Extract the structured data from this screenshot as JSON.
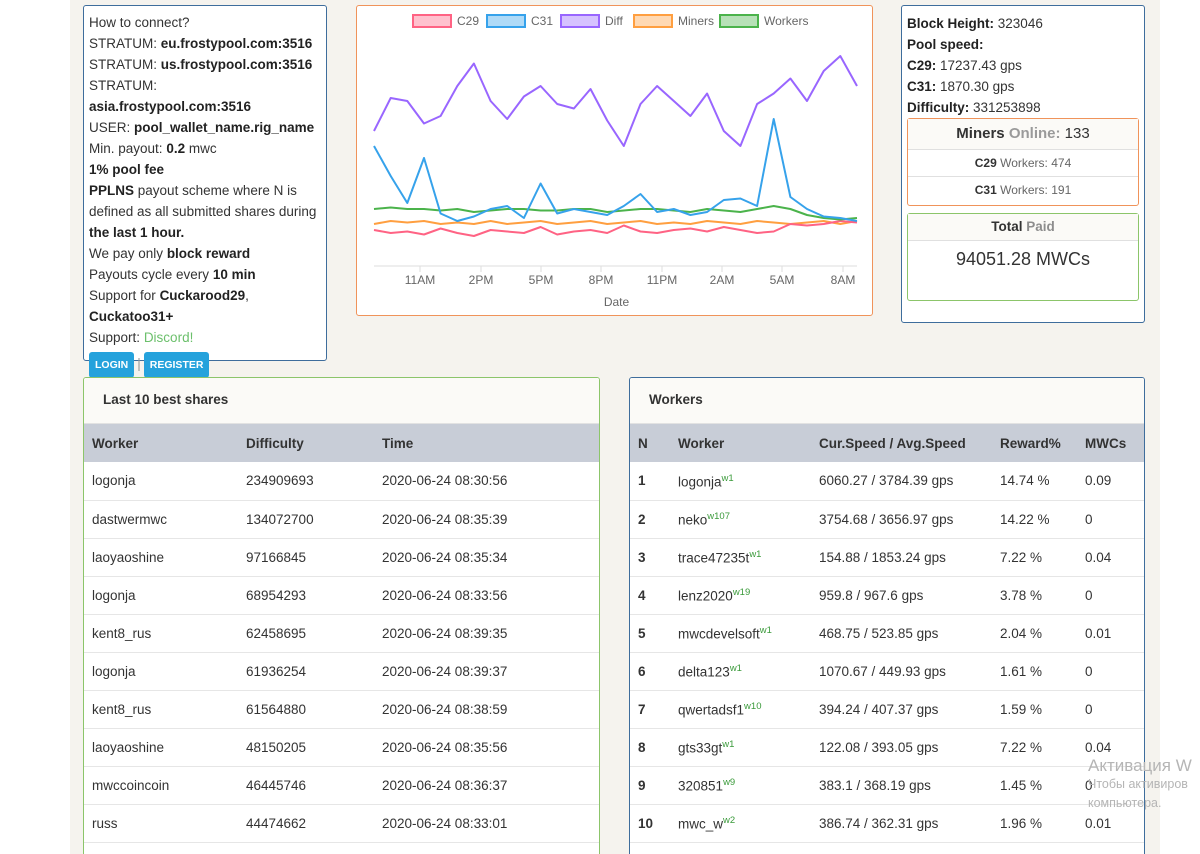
{
  "connect": {
    "how_to_connect": "How to connect?",
    "stratum_label": "STRATUM:",
    "stratums": [
      "eu.frostypool.com:3516",
      "us.frostypool.com:3516",
      "asia.frostypool.com:3516"
    ],
    "user_label": "USER:",
    "user_value": "pool_wallet_name.rig_name",
    "min_payout_label": "Min. payout:",
    "min_payout_value": "0.2",
    "min_payout_unit": "mwc",
    "pool_fee": "1% pool fee",
    "pplns": "PPLNS",
    "pplns_text": "payout scheme where N is defined as all submitted shares during",
    "last_hour": "the last 1 hour.",
    "pay_only": "We pay only",
    "block_reward": "block reward",
    "payouts_cycle": "Payouts cycle every",
    "cycle_value": "10 min",
    "support_for": "Support for",
    "algo1": "Cuckarood29",
    "algo2": "Cuckatoo31+",
    "support_label": "Support:",
    "discord": "Discord!",
    "login": "LOGIN",
    "separator": "|",
    "register": "REGISTER"
  },
  "chart_data": {
    "type": "line",
    "legend": [
      "C29",
      "C31",
      "Diff",
      "Miners",
      "Workers"
    ],
    "legend_colors": [
      "#ff6384",
      "#36a2eb",
      "#9966ff",
      "#ff9f40",
      "#4bb34b"
    ],
    "xlabel": "Date",
    "x_ticks": [
      "11AM",
      "2PM",
      "5PM",
      "8PM",
      "11PM",
      "2AM",
      "5AM",
      "8AM"
    ],
    "series": [
      {
        "name": "C29",
        "values": [
          24,
          22,
          23,
          21,
          25,
          22,
          20,
          24,
          23,
          22,
          26,
          21,
          23,
          24,
          22,
          27,
          23,
          22,
          24,
          25,
          23,
          26,
          24,
          22,
          23,
          28,
          27,
          28,
          30,
          29
        ]
      },
      {
        "name": "C31",
        "values": [
          80,
          60,
          42,
          72,
          35,
          30,
          33,
          38,
          40,
          32,
          55,
          35,
          38,
          36,
          34,
          40,
          48,
          36,
          38,
          34,
          36,
          44,
          45,
          40,
          98,
          46,
          38,
          33,
          32,
          30
        ]
      },
      {
        "name": "Diff",
        "values": [
          90,
          112,
          110,
          95,
          100,
          120,
          135,
          110,
          98,
          113,
          120,
          108,
          105,
          118,
          97,
          80,
          108,
          120,
          110,
          100,
          115,
          90,
          80,
          108,
          115,
          125,
          110,
          130,
          140,
          120
        ]
      },
      {
        "name": "Miners",
        "values": [
          28,
          30,
          29,
          30,
          28,
          29,
          28,
          30,
          28,
          29,
          30,
          28,
          29,
          30,
          28,
          29,
          30,
          28,
          29,
          28,
          30,
          29,
          28,
          30,
          29,
          28,
          29,
          30,
          28,
          30
        ]
      },
      {
        "name": "Workers",
        "values": [
          38,
          39,
          38,
          38,
          37,
          38,
          36,
          37,
          38,
          38,
          37,
          37,
          38,
          38,
          36,
          37,
          38,
          38,
          37,
          36,
          38,
          37,
          36,
          38,
          40,
          38,
          34,
          32,
          31,
          32
        ]
      }
    ]
  },
  "stats": {
    "block_height_label": "Block Height:",
    "block_height": "323046",
    "pool_speed_label": "Pool speed:",
    "c29_label": "C29:",
    "c29_speed": "17237.43 gps",
    "c31_label": "C31:",
    "c31_speed": "1870.30 gps",
    "difficulty_label": "Difficulty:",
    "difficulty": "331253898",
    "miners_label": "Miners",
    "online_label": "Online:",
    "miners_online": "133",
    "c29_workers_label": "C29",
    "c29_workers_text": "Workers:",
    "c29_workers": "474",
    "c31_workers_label": "C31",
    "c31_workers_text": "Workers:",
    "c31_workers": "191",
    "total_label": "Total",
    "paid_label": "Paid",
    "total_paid": "94051.28 MWCs"
  },
  "shares": {
    "title": "Last 10 best shares",
    "columns": [
      "Worker",
      "Difficulty",
      "Time"
    ],
    "rows": [
      [
        "logonja",
        "234909693",
        "2020-06-24 08:30:56"
      ],
      [
        "dastwermwc",
        "134072700",
        "2020-06-24 08:35:39"
      ],
      [
        "laoyaoshine",
        "97166845",
        "2020-06-24 08:35:34"
      ],
      [
        "logonja",
        "68954293",
        "2020-06-24 08:33:56"
      ],
      [
        "kent8_rus",
        "62458695",
        "2020-06-24 08:39:35"
      ],
      [
        "logonja",
        "61936254",
        "2020-06-24 08:39:37"
      ],
      [
        "kent8_rus",
        "61564880",
        "2020-06-24 08:38:59"
      ],
      [
        "laoyaoshine",
        "48150205",
        "2020-06-24 08:35:56"
      ],
      [
        "mwccoincoin",
        "46445746",
        "2020-06-24 08:36:37"
      ],
      [
        "russ",
        "44474662",
        "2020-06-24 08:33:01"
      ]
    ]
  },
  "workers": {
    "title": "Workers",
    "columns": [
      "N",
      "Worker",
      "Cur.Speed / Avg.Speed",
      "Reward%",
      "MWCs"
    ],
    "rows": [
      {
        "n": "1",
        "worker": "logonja",
        "sup": "w1",
        "speed": "6060.27 / 3784.39 gps",
        "reward": "14.74 %",
        "mwcs": "0.09"
      },
      {
        "n": "2",
        "worker": "neko",
        "sup": "w107",
        "speed": "3754.68 / 3656.97 gps",
        "reward": "14.22 %",
        "mwcs": "0"
      },
      {
        "n": "3",
        "worker": "trace47235t",
        "sup": "w1",
        "speed": "154.88 / 1853.24 gps",
        "reward": "7.22 %",
        "mwcs": "0.04"
      },
      {
        "n": "4",
        "worker": "lenz2020",
        "sup": "w19",
        "speed": "959.8 / 967.6 gps",
        "reward": "3.78 %",
        "mwcs": "0"
      },
      {
        "n": "5",
        "worker": "mwcdevelsoft",
        "sup": "w1",
        "speed": "468.75 / 523.85 gps",
        "reward": "2.04 %",
        "mwcs": "0.01"
      },
      {
        "n": "6",
        "worker": "delta123",
        "sup": "w1",
        "speed": "1070.67 / 449.93 gps",
        "reward": "1.61 %",
        "mwcs": "0"
      },
      {
        "n": "7",
        "worker": "qwertadsf1",
        "sup": "w10",
        "speed": "394.24 / 407.37 gps",
        "reward": "1.59 %",
        "mwcs": "0"
      },
      {
        "n": "8",
        "worker": "gts33gt",
        "sup": "w1",
        "speed": "122.08 / 393.05 gps",
        "reward": "7.22 %",
        "mwcs": "0.04"
      },
      {
        "n": "9",
        "worker": "320851",
        "sup": "w9",
        "speed": "383.1 / 368.19 gps",
        "reward": "1.45 %",
        "mwcs": "0"
      },
      {
        "n": "10",
        "worker": "mwc_w",
        "sup": "w2",
        "speed": "386.74 / 362.31 gps",
        "reward": "1.96 %",
        "mwcs": "0.01"
      }
    ]
  },
  "watermark": {
    "line1": "Активация W",
    "line2": "Чтобы активиров",
    "line3": "компьютера."
  }
}
